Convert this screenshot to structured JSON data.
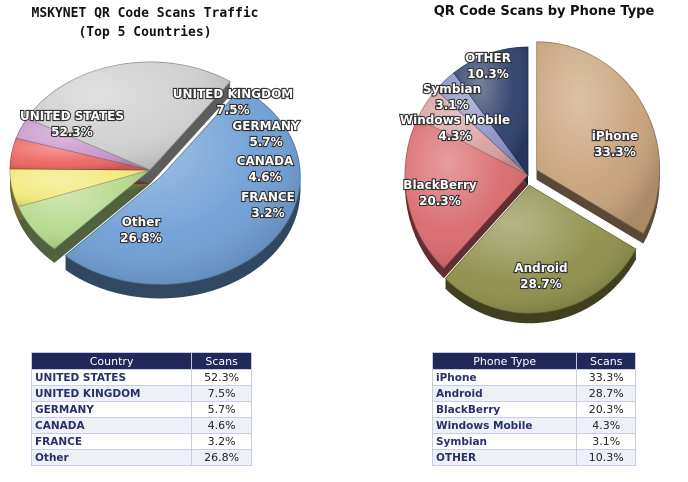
{
  "chart_data": [
    {
      "type": "pie",
      "title": "MSKYNET QR Code Scans Traffic",
      "subtitle": "(Top 5 Countries)",
      "slices": [
        {
          "label": "UNITED STATES",
          "value": 52.3,
          "value_text": "52.3%",
          "color": "#6f9fd6",
          "exploded": true
        },
        {
          "label": "UNITED KINGDOM",
          "value": 7.5,
          "value_text": "7.5%",
          "color": "#b5d98c",
          "exploded": false
        },
        {
          "label": "GERMANY",
          "value": 5.7,
          "value_text": "5.7%",
          "color": "#f2ea7c",
          "exploded": false
        },
        {
          "label": "CANADA",
          "value": 4.6,
          "value_text": "4.6%",
          "color": "#ee6560",
          "exploded": false
        },
        {
          "label": "FRANCE",
          "value": 3.2,
          "value_text": "3.2%",
          "color": "#c996c9",
          "exploded": false
        },
        {
          "label": "Other",
          "value": 26.8,
          "value_text": "26.8%",
          "color": "#cfcfcf",
          "exploded": false
        }
      ],
      "table": {
        "headers": [
          "Country",
          "Scans"
        ],
        "rows": [
          [
            "UNITED STATES",
            "52.3%"
          ],
          [
            "UNITED KINGDOM",
            "7.5%"
          ],
          [
            "GERMANY",
            "5.7%"
          ],
          [
            "CANADA",
            "4.6%"
          ],
          [
            "FRANCE",
            "3.2%"
          ],
          [
            "Other",
            "26.8%"
          ]
        ]
      }
    },
    {
      "type": "pie",
      "title": "QR Code Scans by Phone Type",
      "slices": [
        {
          "label": "iPhone",
          "value": 33.3,
          "value_text": "33.3%",
          "color": "#c8a27a",
          "exploded": true
        },
        {
          "label": "Android",
          "value": 28.7,
          "value_text": "28.7%",
          "color": "#8e8f4a",
          "exploded": true
        },
        {
          "label": "BlackBerry",
          "value": 20.3,
          "value_text": "20.3%",
          "color": "#d9696d",
          "exploded": false
        },
        {
          "label": "Windows Mobile",
          "value": 4.3,
          "value_text": "4.3%",
          "color": "#d9a0a0",
          "exploded": false
        },
        {
          "label": "Symbian",
          "value": 3.1,
          "value_text": "3.1%",
          "color": "#8a8fc4",
          "exploded": false
        },
        {
          "label": "OTHER",
          "value": 10.3,
          "value_text": "10.3%",
          "color": "#2c3f6a",
          "exploded": false
        }
      ],
      "table": {
        "headers": [
          "Phone Type",
          "Scans"
        ],
        "rows": [
          [
            "iPhone",
            "33.3%"
          ],
          [
            "Android",
            "28.7%"
          ],
          [
            "BlackBerry",
            "20.3%"
          ],
          [
            "Windows Mobile",
            "4.3%"
          ],
          [
            "Symbian",
            "3.1%"
          ],
          [
            "OTHER",
            "10.3%"
          ]
        ]
      }
    }
  ]
}
